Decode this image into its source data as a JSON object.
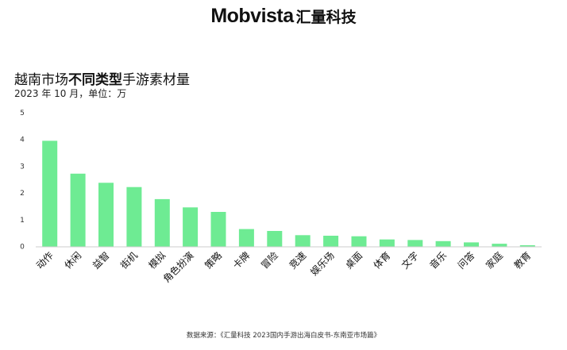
{
  "logo": {
    "brand": "Mobvista",
    "brand_cn": "汇量科技"
  },
  "title": {
    "part1": "越南市场",
    "part2": "不同类型",
    "part3": "手游素材量"
  },
  "subtitle": "2023 年 10 月，单位：万",
  "source": "数据来源：《汇量科技 2023国内手游出海白皮书-东南亚市场篇》",
  "colors": {
    "bar": "#6eeb93",
    "axis": "#cccccc",
    "text": "#222222"
  },
  "chart_data": {
    "type": "bar",
    "categories": [
      "动作",
      "休闲",
      "益智",
      "街机",
      "模拟",
      "角色扮演",
      "策略",
      "卡牌",
      "冒险",
      "竞速",
      "娱乐场",
      "桌面",
      "体育",
      "文字",
      "音乐",
      "问答",
      "家庭",
      "教育"
    ],
    "values": [
      3.95,
      2.72,
      2.38,
      2.22,
      1.77,
      1.46,
      1.29,
      0.65,
      0.58,
      0.42,
      0.4,
      0.38,
      0.26,
      0.24,
      0.2,
      0.15,
      0.1,
      0.03
    ],
    "yticks": [
      0,
      1,
      2,
      3,
      4,
      5
    ],
    "ylim": [
      0,
      5
    ],
    "grid": false,
    "legend": false
  }
}
